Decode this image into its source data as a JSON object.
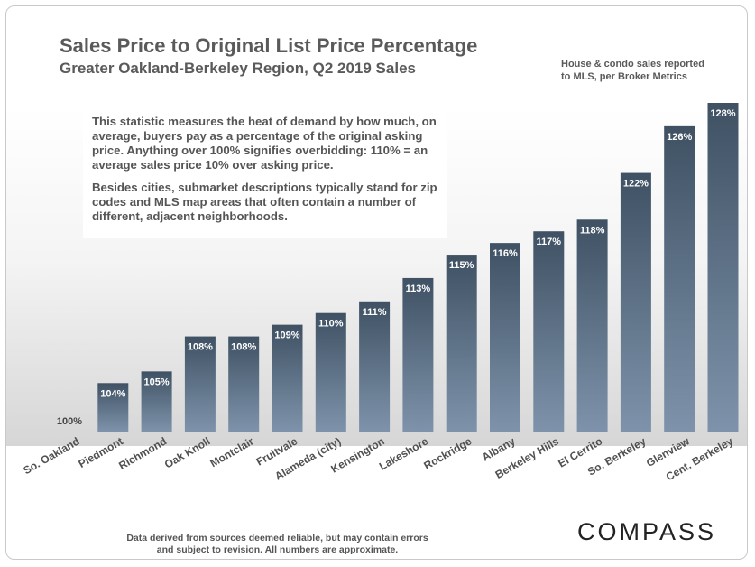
{
  "title": "Sales Price to Original List Price Percentage",
  "subtitle": "Greater Oakland-Berkeley Region, Q2 2019 Sales",
  "note": [
    "House & condo sales reported",
    "to MLS, per Broker Metrics"
  ],
  "info": [
    "This statistic measures the heat of demand by how much, on average, buyers pay as a percentage of the original asking price. Anything over 100% signifies overbidding: 110% = an average sales price 10% over asking price.",
    "Besides cities, submarket descriptions typically stand for zip codes and MLS map areas that often contain a number of different, adjacent neighborhoods."
  ],
  "footer": [
    "Data derived from sources deemed reliable, but may contain errors",
    "and subject to revision.  All numbers are approximate."
  ],
  "logo": "COMPASS",
  "colors": {
    "bar_top": "#3f5163",
    "bar_bottom": "#7e93ab",
    "label": "#ffffff"
  },
  "chart_data": {
    "type": "bar",
    "categories": [
      "So. Oakland",
      "Piedmont",
      "Richmond",
      "Oak Knoll",
      "Montclair",
      "Fruitvale",
      "Alameda (city)",
      "Kensington",
      "Lakeshore",
      "Rockridge",
      "Albany",
      "Berkeley Hills",
      "El Cerrito",
      "So. Berkeley",
      "Glenview",
      "Cent. Berkeley"
    ],
    "values": [
      100,
      104,
      105,
      108,
      108,
      109,
      110,
      111,
      113,
      115,
      116,
      117,
      118,
      122,
      126,
      128
    ],
    "labels": [
      "100%",
      "104%",
      "105%",
      "108%",
      "108%",
      "109%",
      "110%",
      "111%",
      "113%",
      "115%",
      "116%",
      "117%",
      "118%",
      "122%",
      "126%",
      "128%"
    ],
    "ylim": [
      100,
      128
    ],
    "grid": false,
    "legend": "none"
  }
}
